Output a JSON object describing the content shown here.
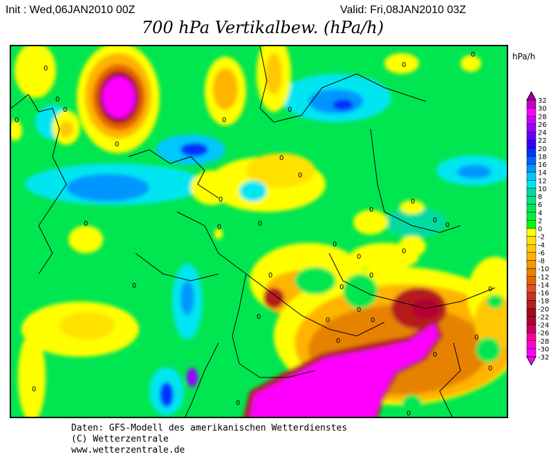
{
  "header": {
    "init": "Init : Wed,06JAN2010 00Z",
    "valid": "Valid: Fri,08JAN2010 03Z",
    "title": "700 hPa Vertikalbew. (hPa/h)"
  },
  "map": {
    "field": "700 hPa vertical motion",
    "background_color": "#00e650",
    "contour_label": "0"
  },
  "legend": {
    "unit": "hPa/h",
    "labels": [
      "32",
      "30",
      "28",
      "26",
      "24",
      "22",
      "20",
      "18",
      "16",
      "14",
      "12",
      "10",
      "8",
      "6",
      "4",
      "2",
      "0",
      "-2",
      "-4",
      "-6",
      "-8",
      "-10",
      "-12",
      "-14",
      "-16",
      "-18",
      "-20",
      "-22",
      "-24",
      "-26",
      "-28",
      "-30",
      "-32"
    ],
    "colors": [
      "#c800c8",
      "#ff00ff",
      "#c800ff",
      "#9600ff",
      "#6400ff",
      "#3200ff",
      "#0032ff",
      "#0064ff",
      "#0096ff",
      "#00c8ff",
      "#00e6f0",
      "#00dca0",
      "#00e682",
      "#00e650",
      "#00f03c",
      "#00ff00",
      "#ffff00",
      "#ffe100",
      "#ffc800",
      "#ffb400",
      "#ff9600",
      "#e68200",
      "#e66400",
      "#dc5028",
      "#c83228",
      "#b41e1e",
      "#a00a1e",
      "#b40032",
      "#c80064",
      "#ff0096",
      "#ff00c8",
      "#ff00ff"
    ],
    "over_color": "#9b009b",
    "under_color": "#ff00ff"
  },
  "footer": {
    "line1": "Daten: GFS-Modell des amerikanischen Wetterdienstes",
    "line2": "(C) Wetterzentrale",
    "line3": "www.wetterzentrale.de"
  }
}
